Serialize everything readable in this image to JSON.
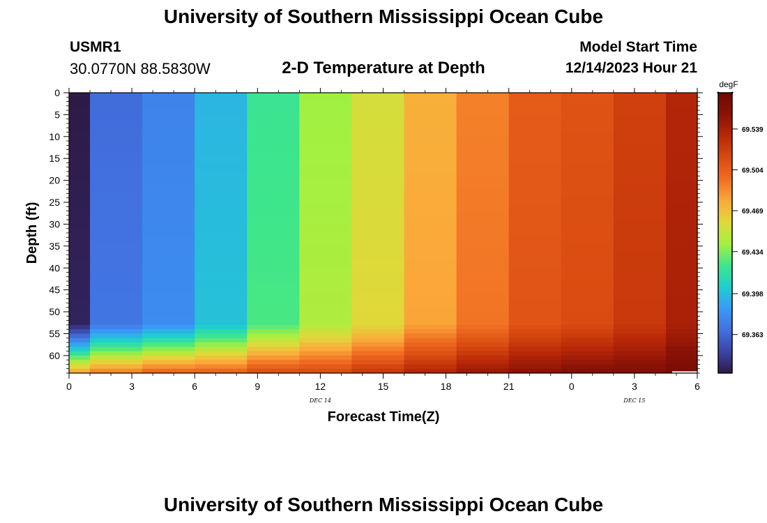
{
  "header": {
    "title": "University of Southern Mississippi Ocean Cube",
    "station_id": "USMR1",
    "station_coords": "30.0770N  88.5830W",
    "subtitle": "2-D Temperature at Depth",
    "model_start_label": "Model Start Time",
    "model_start_value": "12/14/2023 Hour 21"
  },
  "footer": {
    "title": "University of Southern Mississippi Ocean Cube"
  },
  "chart_data": {
    "type": "heatmap",
    "title": "2-D Temperature at Depth",
    "xlabel": "Forecast Time(Z)",
    "ylabel": "Depth (ft)",
    "x_tick_labels": [
      "0",
      "3",
      "6",
      "9",
      "12",
      "15",
      "18",
      "21",
      "0",
      "3",
      "6"
    ],
    "x_date_labels": [
      {
        "tick_index": 4,
        "text": "DEC 14"
      },
      {
        "tick_index": 9,
        "text": "DEC 15"
      }
    ],
    "y_tick_labels": [
      "0",
      "5",
      "10",
      "15",
      "20",
      "25",
      "30",
      "35",
      "40",
      "45",
      "50",
      "55",
      "60"
    ],
    "ylim": [
      0,
      64
    ],
    "y_inverted": true,
    "colorbar": {
      "unit": "degF",
      "tick_labels": [
        "69.539",
        "69.504",
        "69.469",
        "69.434",
        "69.398",
        "69.363"
      ],
      "range": [
        69.33,
        69.57
      ],
      "colors": [
        "#2e1a47",
        "#3b45a5",
        "#4271e0",
        "#3a9af7",
        "#1ecfcd",
        "#3fe68a",
        "#a4f040",
        "#e1d83a",
        "#fba93a",
        "#f06d22",
        "#d94a10",
        "#b82808",
        "#8a1206",
        "#6e0a04"
      ]
    },
    "forecast_hours": [
      0,
      2,
      5,
      7,
      10,
      12,
      15,
      17,
      20,
      22,
      25,
      27,
      30
    ],
    "surface_values": [
      69.33,
      69.365,
      69.375,
      69.395,
      69.42,
      69.44,
      69.455,
      69.475,
      69.49,
      69.505,
      69.51,
      69.52,
      69.535
    ],
    "bottom_values": [
      69.49,
      69.5,
      69.51,
      69.51,
      69.52,
      69.52,
      69.53,
      69.54,
      69.55,
      69.555,
      69.56,
      69.56,
      69.565
    ],
    "mixed_layer_depth_ft": 52,
    "max_depth_ft": 64
  }
}
